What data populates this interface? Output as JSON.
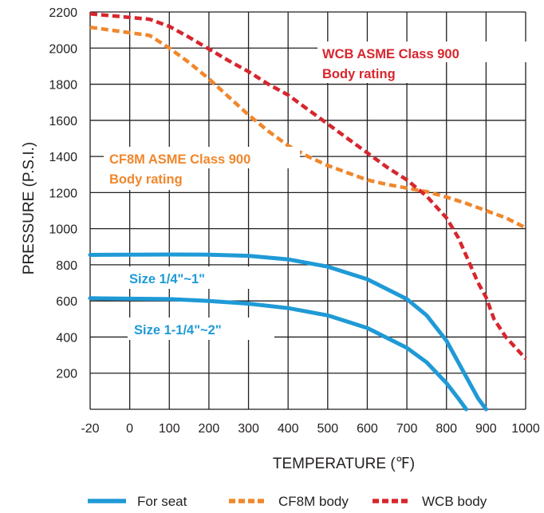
{
  "chart_data": {
    "type": "line",
    "xlabel": "TEMPERATURE (℉)",
    "ylabel": "PRESSURE (P.S.I.)",
    "xlim": [
      -20,
      1000
    ],
    "ylim": [
      0,
      2200
    ],
    "x_ticks": [
      "-20",
      "0",
      "100",
      "200",
      "300",
      "400",
      "500",
      "600",
      "700",
      "800",
      "900",
      "1000"
    ],
    "y_ticks": [
      "200",
      "400",
      "600",
      "800",
      "1000",
      "1200",
      "1400",
      "1600",
      "1800",
      "2000",
      "2200"
    ],
    "grid": true,
    "legend_position": "bottom",
    "series": [
      {
        "name": "For seat",
        "label": "Size 1/4\"~1\"",
        "style": "solid",
        "color": "#1f9ad6",
        "points": [
          [
            -20,
            855
          ],
          [
            100,
            857
          ],
          [
            200,
            856
          ],
          [
            300,
            850
          ],
          [
            400,
            830
          ],
          [
            500,
            790
          ],
          [
            600,
            720
          ],
          [
            700,
            610
          ],
          [
            750,
            520
          ],
          [
            800,
            380
          ],
          [
            850,
            180
          ],
          [
            880,
            60
          ],
          [
            900,
            0
          ]
        ]
      },
      {
        "name": "For seat",
        "label": "Size 1-1/4\"~2\"",
        "style": "solid",
        "color": "#1f9ad6",
        "points": [
          [
            -20,
            615
          ],
          [
            100,
            610
          ],
          [
            200,
            600
          ],
          [
            300,
            585
          ],
          [
            400,
            560
          ],
          [
            500,
            520
          ],
          [
            600,
            450
          ],
          [
            700,
            340
          ],
          [
            750,
            260
          ],
          [
            800,
            145
          ],
          [
            830,
            60
          ],
          [
            850,
            0
          ]
        ]
      },
      {
        "name": "CF8M body",
        "label": "CF8M ASME Class 900\nBody rating",
        "style": "dashed",
        "color": "#f0872c",
        "points": [
          [
            -20,
            2115
          ],
          [
            50,
            2070
          ],
          [
            100,
            2000
          ],
          [
            150,
            1920
          ],
          [
            200,
            1830
          ],
          [
            250,
            1730
          ],
          [
            300,
            1630
          ],
          [
            350,
            1540
          ],
          [
            400,
            1460
          ],
          [
            450,
            1400
          ],
          [
            500,
            1350
          ],
          [
            550,
            1310
          ],
          [
            600,
            1270
          ],
          [
            650,
            1245
          ],
          [
            700,
            1225
          ],
          [
            750,
            1205
          ],
          [
            800,
            1175
          ],
          [
            850,
            1140
          ],
          [
            900,
            1100
          ],
          [
            950,
            1060
          ],
          [
            1000,
            1005
          ]
        ]
      },
      {
        "name": "WCB body",
        "label": "WCB ASME Class 900\nBody rating",
        "style": "dashed",
        "color": "#d7262d",
        "points": [
          [
            -20,
            2190
          ],
          [
            50,
            2160
          ],
          [
            100,
            2120
          ],
          [
            150,
            2060
          ],
          [
            200,
            1995
          ],
          [
            250,
            1930
          ],
          [
            300,
            1870
          ],
          [
            350,
            1800
          ],
          [
            400,
            1740
          ],
          [
            450,
            1660
          ],
          [
            500,
            1580
          ],
          [
            550,
            1500
          ],
          [
            600,
            1420
          ],
          [
            650,
            1340
          ],
          [
            700,
            1270
          ],
          [
            750,
            1180
          ],
          [
            800,
            1060
          ],
          [
            830,
            950
          ],
          [
            860,
            800
          ],
          [
            880,
            700
          ],
          [
            900,
            620
          ],
          [
            920,
            500
          ],
          [
            950,
            400
          ],
          [
            1000,
            280
          ]
        ]
      }
    ]
  },
  "legend": [
    {
      "label": "For seat",
      "style": "solid",
      "color": "#1f9ad6"
    },
    {
      "label": "CF8M body",
      "style": "dashed",
      "color": "#f0872c"
    },
    {
      "label": "WCB body",
      "style": "dashed",
      "color": "#d7262d"
    }
  ],
  "annotations": {
    "wcb_line1": "WCB ASME Class 900",
    "wcb_line2": "Body rating",
    "cf8m_line1": "CF8M ASME Class 900",
    "cf8m_line2": "Body rating",
    "size_small": "Size 1/4\"~1\"",
    "size_large": "Size 1-1/4\"~2\""
  },
  "colors": {
    "seat": "#1f9ad6",
    "cf8m": "#f0872c",
    "wcb": "#d7262d",
    "grid": "#231f20"
  }
}
